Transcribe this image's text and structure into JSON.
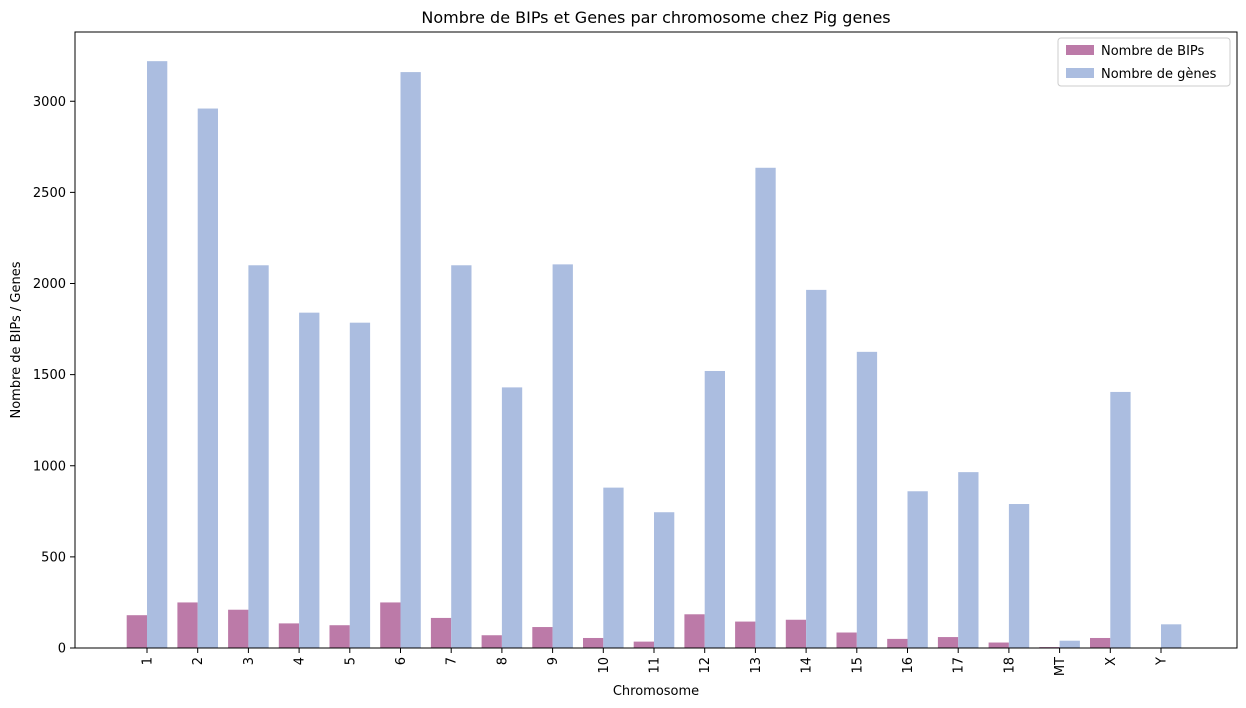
{
  "chart_data": {
    "type": "bar",
    "title": "Nombre de BIPs et Genes par chromosome chez Pig genes",
    "xlabel": "Chromosome",
    "ylabel": "Nombre de BIPs / Genes",
    "ylim": [
      0,
      3380
    ],
    "yticks": [
      0,
      500,
      1000,
      1500,
      2000,
      2500,
      3000
    ],
    "grid": false,
    "legend_position": "top-right",
    "categories": [
      "1",
      "2",
      "3",
      "4",
      "5",
      "6",
      "7",
      "8",
      "9",
      "10",
      "11",
      "12",
      "13",
      "14",
      "15",
      "16",
      "17",
      "18",
      "MT",
      "X",
      "Y"
    ],
    "series": [
      {
        "name": "Nombre de BIPs",
        "color": "#bc7aa8",
        "values": [
          180,
          250,
          210,
          135,
          125,
          250,
          165,
          70,
          115,
          55,
          35,
          185,
          145,
          155,
          85,
          50,
          60,
          30,
          5,
          55,
          0
        ]
      },
      {
        "name": "Nombre de gènes",
        "color": "#abbde0",
        "values": [
          3220,
          2960,
          2100,
          1840,
          1785,
          3160,
          2100,
          1430,
          2105,
          880,
          745,
          1520,
          2635,
          1965,
          1625,
          860,
          965,
          790,
          40,
          1405,
          130
        ]
      }
    ]
  }
}
